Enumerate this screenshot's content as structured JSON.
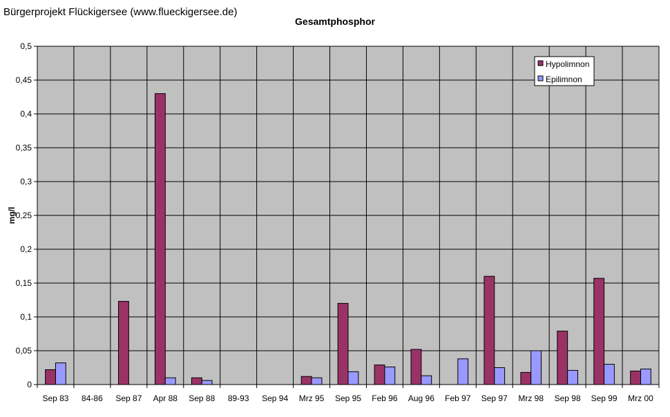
{
  "header": {
    "caption": "Bürgerprojekt Flückigersee (www.flueckigersee.de)"
  },
  "chart_data": {
    "type": "bar",
    "title": "Gesamtphosphor",
    "xlabel": "",
    "ylabel": "mg/l",
    "ylim": [
      0,
      0.5
    ],
    "yticks": [
      "0",
      "0,05",
      "0,1",
      "0,15",
      "0,2",
      "0,25",
      "0,3",
      "0,35",
      "0,4",
      "0,45",
      "0,5"
    ],
    "categories": [
      "Sep 83",
      "84-86",
      "Sep 87",
      "Apr 88",
      "Sep 88",
      "89-93",
      "Sep 94",
      "Mrz 95",
      "Sep 95",
      "Feb 96",
      "Aug 96",
      "Feb 97",
      "Sep 97",
      "Mrz 98",
      "Sep 98",
      "Sep 99",
      "Mrz 00"
    ],
    "series": [
      {
        "name": "Hypolimnon",
        "color": "#993366",
        "values": [
          0.022,
          null,
          0.123,
          0.43,
          0.01,
          null,
          null,
          0.012,
          0.12,
          0.029,
          0.052,
          null,
          0.16,
          0.018,
          0.079,
          0.157,
          0.02
        ]
      },
      {
        "name": "Epilimnon",
        "color": "#9999ff",
        "values": [
          0.032,
          null,
          null,
          0.01,
          0.006,
          null,
          null,
          0.01,
          0.019,
          0.026,
          0.013,
          0.038,
          0.025,
          0.05,
          0.021,
          0.03,
          0.023
        ]
      }
    ],
    "plot_background": "#c0c0c0",
    "grid": true,
    "legend_position": "top-right"
  }
}
